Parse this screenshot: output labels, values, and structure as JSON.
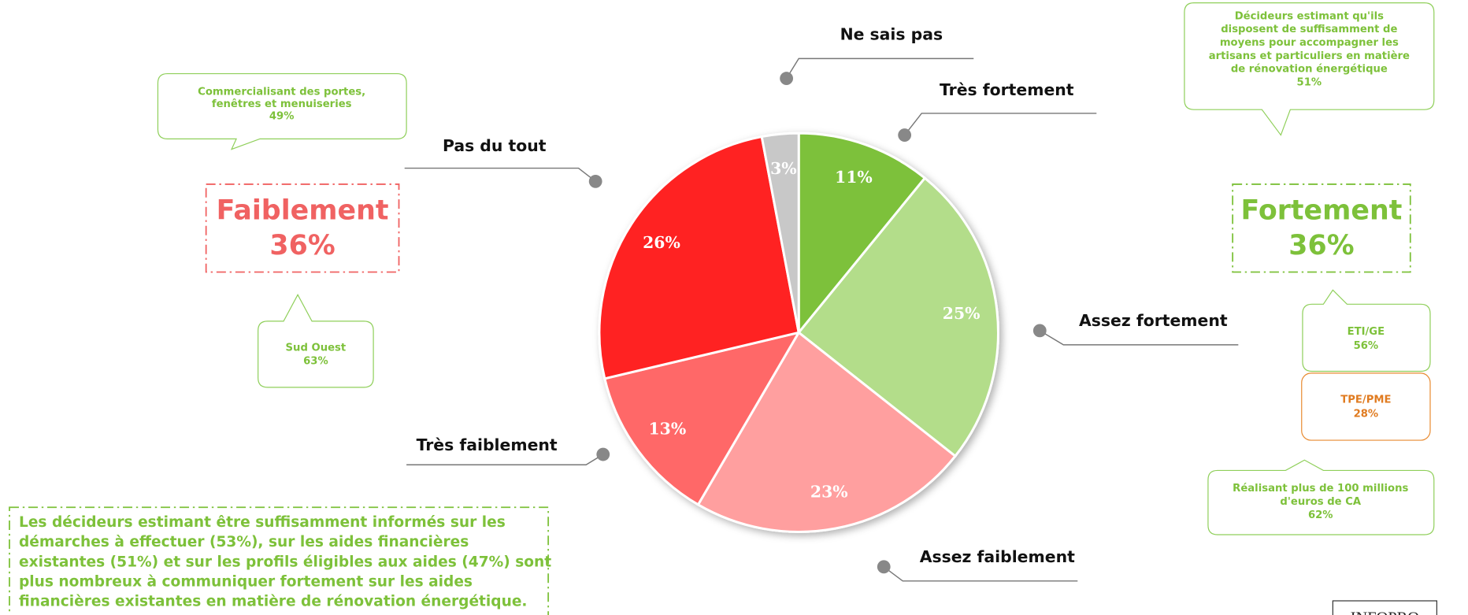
{
  "chart_data": {
    "type": "pie",
    "categories": [
      "Très fortement",
      "Assez fortement",
      "Assez faiblement",
      "Très faiblement",
      "Pas du tout",
      "Ne sais pas"
    ],
    "values": [
      11,
      25,
      23,
      13,
      26,
      3
    ],
    "value_labels": [
      "11%",
      "25%",
      "23%",
      "13%",
      "26%",
      "3%"
    ],
    "colors": [
      "#7dc13a",
      "#b3dd8a",
      "#ff9f9f",
      "#ff6868",
      "#ff2222",
      "#c8c8c8"
    ],
    "annotations": [
      {
        "lines": [
          "Commercialisant des portes,",
          "fenêtres et menuiseries",
          "49%"
        ]
      },
      {
        "lines": [
          "Faiblement",
          "36%"
        ]
      },
      {
        "lines": [
          "Sud Ouest",
          "63%"
        ]
      },
      {
        "lines": [
          "Décideurs estimant qu'ils",
          "disposent de suffisamment de",
          "moyens pour accompagner les",
          "artisans et particuliers en matière",
          "de rénovation énergétique",
          "51%"
        ]
      },
      {
        "lines": [
          "Fortement",
          "36%"
        ]
      },
      {
        "lines": [
          "ETI/GE",
          "56%"
        ]
      },
      {
        "lines": [
          "TPE/PME",
          "28%"
        ]
      },
      {
        "lines": [
          "Réalisant plus de 100 millions",
          "d'euros de CA",
          "62%"
        ]
      },
      {
        "lines": [
          "Les décideurs estimant être suffisamment informés sur les",
          "démarches à effectuer (53%), sur les aides financières",
          "existantes (51%) et sur les profils éligibles aux aides (47%) sont",
          "plus nombreux à communiquer fortement sur les aides",
          "financières  existantes en matière de rénovation énergétique."
        ]
      }
    ],
    "logo": "INFOPRO"
  }
}
